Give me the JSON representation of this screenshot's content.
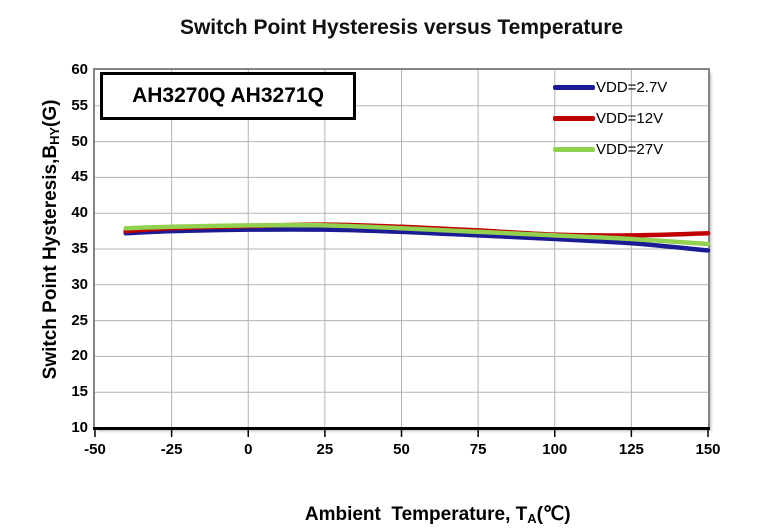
{
  "title": "Switch Point Hysteresis versus Temperature",
  "annotation": "AH3270Q AH3271Q",
  "axes": {
    "x_label_main": "Ambient  Temperature, T",
    "x_label_sub": "A",
    "x_label_unit": "(℃)",
    "y_label_main": "Switch Point Hysteresis,B",
    "y_label_sub": "HY",
    "y_label_unit": "(G)"
  },
  "colors": {
    "grid": "#b3b3b3",
    "frame": "#848484",
    "axis": "#000000",
    "background": "#ffffff"
  },
  "chart_data": {
    "type": "line",
    "title": "Switch Point Hysteresis versus Temperature",
    "xlabel": "Ambient Temperature, TA(℃)",
    "ylabel": "Switch Point Hysteresis, BHY(G)",
    "annotation": "AH3270Q AH3271Q",
    "xlim": [
      -50,
      150
    ],
    "ylim": [
      10,
      60
    ],
    "xticks": [
      -50,
      -25,
      0,
      25,
      50,
      75,
      100,
      125,
      150
    ],
    "yticks": [
      60,
      55,
      50,
      45,
      40,
      35,
      30,
      25,
      20,
      15,
      10
    ],
    "grid": true,
    "legend_position": "top-right",
    "x": [
      -40,
      -25,
      0,
      25,
      50,
      75,
      100,
      125,
      150
    ],
    "series": [
      {
        "name": "VDD=2.7V",
        "color": "#1b1b96",
        "values": [
          37.2,
          37.5,
          37.7,
          37.7,
          37.4,
          36.9,
          36.4,
          35.8,
          34.8
        ]
      },
      {
        "name": "VDD=12V",
        "color": "#c00000",
        "values": [
          37.5,
          37.9,
          38.2,
          38.4,
          38.1,
          37.6,
          37.0,
          36.9,
          37.2
        ]
      },
      {
        "name": "VDD=27V",
        "color": "#92d050",
        "values": [
          37.9,
          38.1,
          38.3,
          38.3,
          37.9,
          37.4,
          36.9,
          36.4,
          35.7
        ]
      }
    ]
  }
}
